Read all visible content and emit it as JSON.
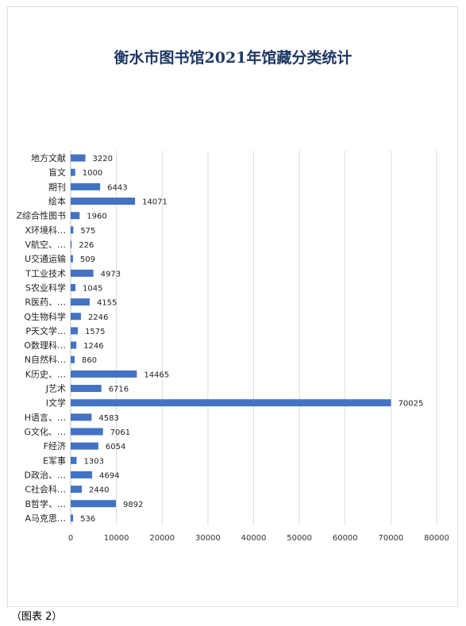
{
  "chart_data": {
    "type": "bar",
    "orientation": "horizontal",
    "title": "衡水市图书馆2021年馆藏分类统计",
    "xlabel": "",
    "ylabel": "",
    "xlim": [
      0,
      80000
    ],
    "x_ticks": [
      "0",
      "10000",
      "20000",
      "30000",
      "40000",
      "50000",
      "60000",
      "70000",
      "80000"
    ],
    "grid": "vertical",
    "legend": "none",
    "bar_color": "#4472c4",
    "categories": [
      "地方文献",
      "盲文",
      "期刊",
      "绘本",
      "Z综合性图书",
      "X环境科…",
      "V航空、…",
      "U交通运输",
      "T工业技术",
      "S农业科学",
      "R医药、…",
      "Q生物科学",
      "P天文学…",
      "O数理科…",
      "N自然科…",
      "K历史、…",
      "J艺术",
      "I文学",
      "H语言、…",
      "G文化、…",
      "F经济",
      "E军事",
      "D政治、…",
      "C社会科…",
      "B哲学、…",
      "A马克思…"
    ],
    "values": [
      3220,
      1000,
      6443,
      14071,
      1960,
      575,
      226,
      509,
      4973,
      1045,
      4155,
      2246,
      1575,
      1246,
      860,
      14465,
      6716,
      70025,
      4583,
      7061,
      6054,
      1303,
      4694,
      2440,
      9892,
      536
    ]
  },
  "caption": "（图表 2）"
}
